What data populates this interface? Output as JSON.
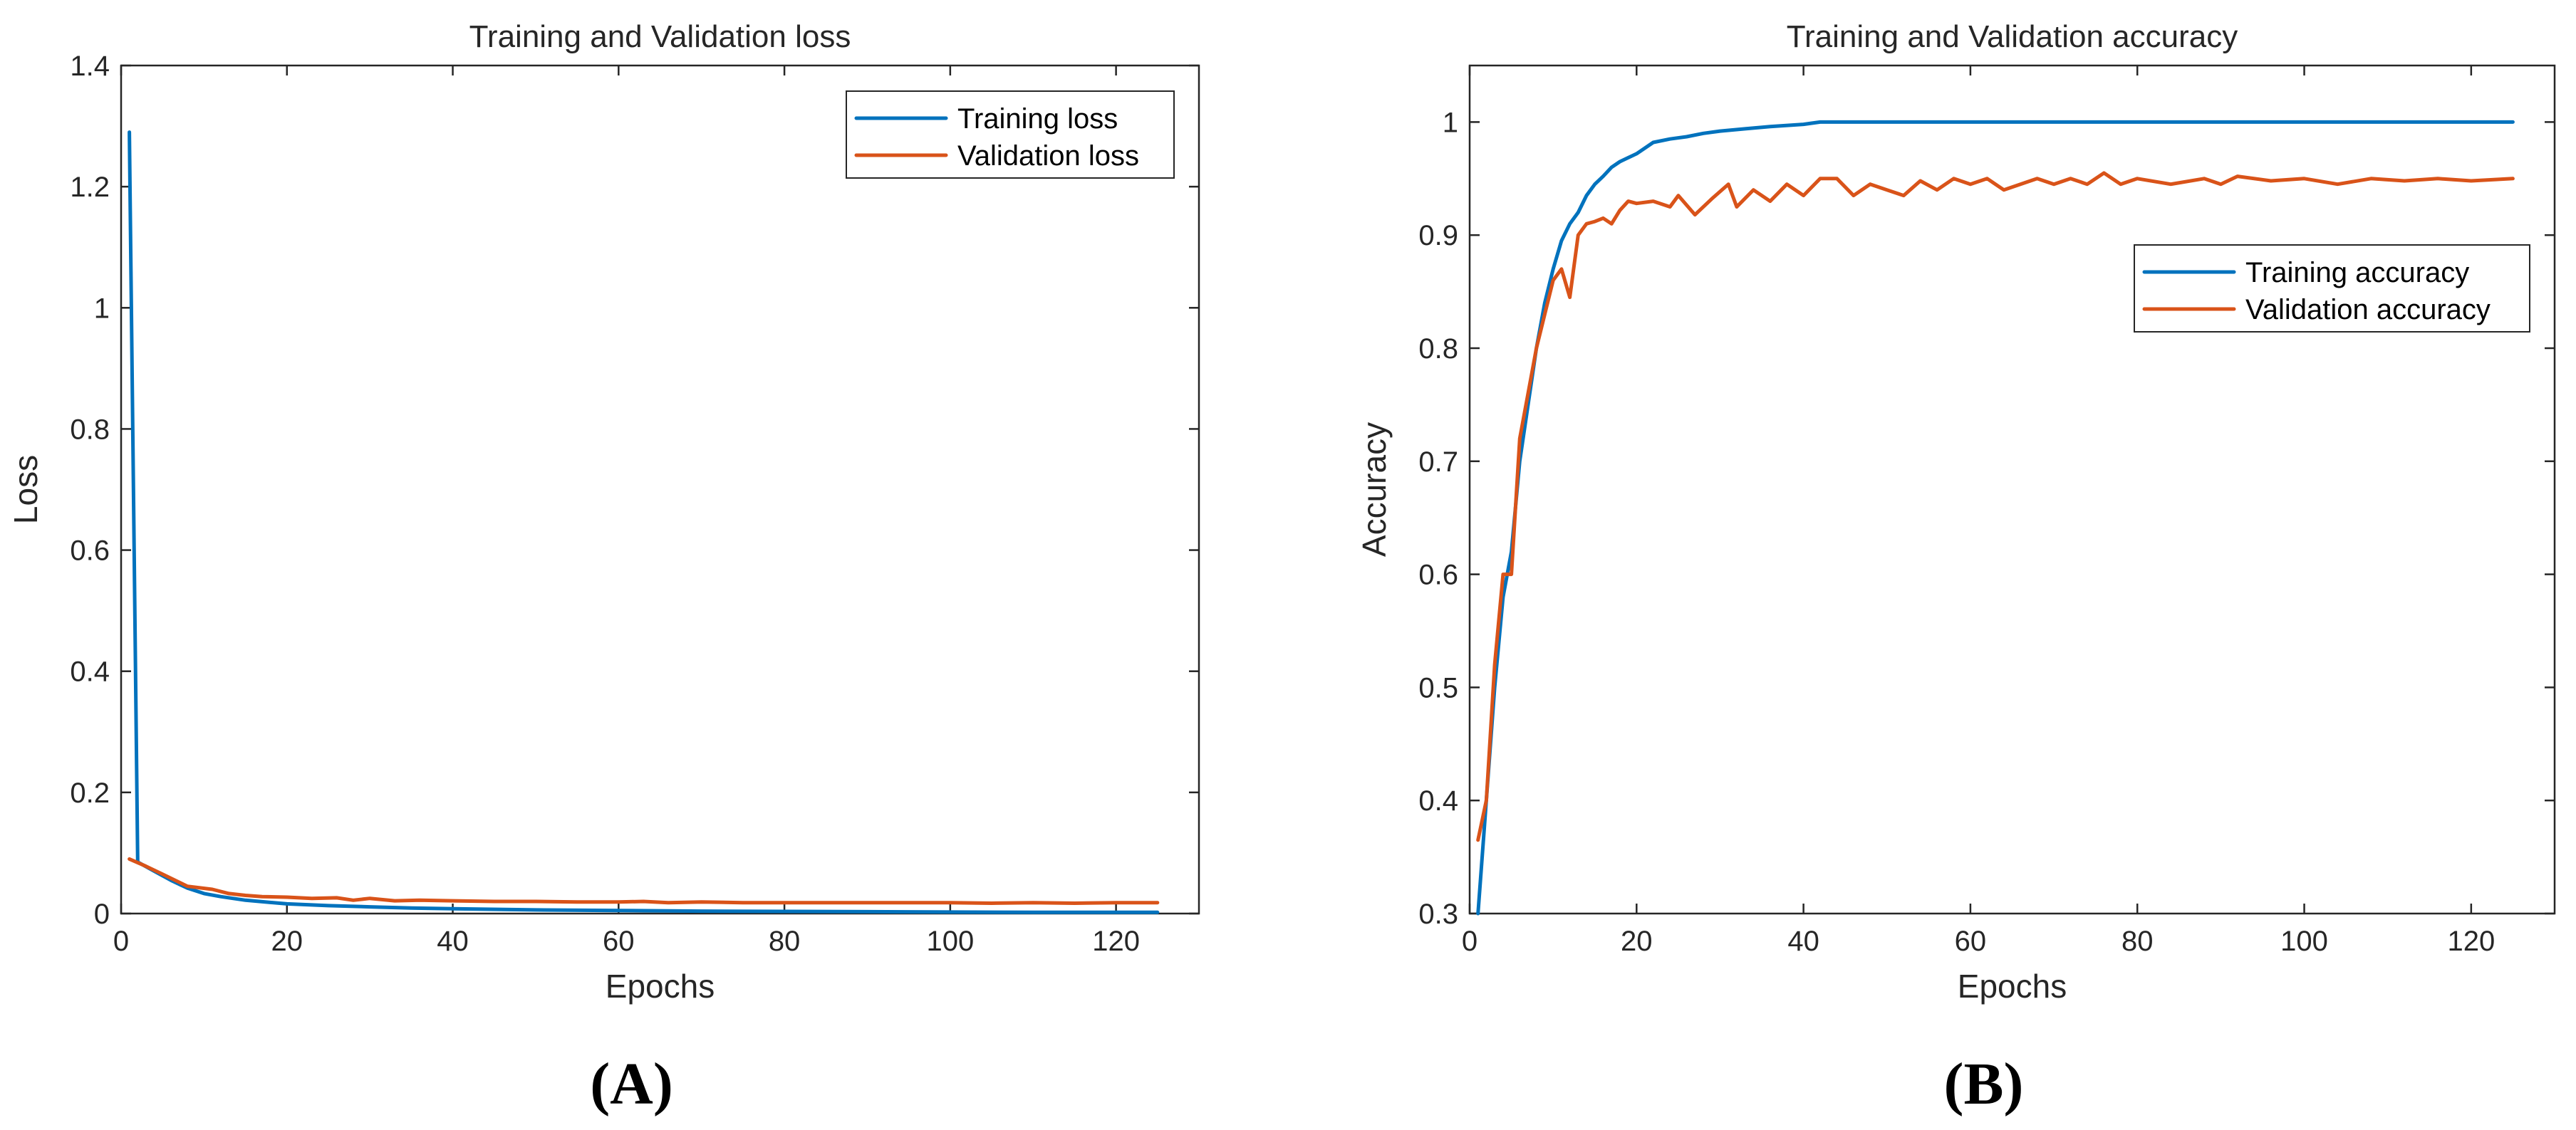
{
  "colors": {
    "training": "#0072BD",
    "validation": "#D95319",
    "axis": "#262626"
  },
  "chart_data": [
    {
      "type": "line",
      "panel_label": "(A)",
      "title": "Training and Validation loss",
      "xlabel": "Epochs",
      "ylabel": "Loss",
      "xlim": [
        0,
        130
      ],
      "ylim": [
        0,
        1.4
      ],
      "xticks": [
        0,
        20,
        40,
        60,
        80,
        100,
        120
      ],
      "yticks": [
        0,
        0.2,
        0.4,
        0.6,
        0.8,
        1,
        1.2,
        1.4
      ],
      "ytick_labels": [
        "0",
        "0.2",
        "0.4",
        "0.6",
        "0.8",
        "1",
        "1.2",
        "1.4"
      ],
      "legend_position": "top-right",
      "series": [
        {
          "name": "Training loss",
          "color_key": "training",
          "points": [
            [
              1,
              1.29
            ],
            [
              2,
              0.085
            ],
            [
              4,
              0.07
            ],
            [
              6,
              0.055
            ],
            [
              8,
              0.042
            ],
            [
              10,
              0.033
            ],
            [
              12,
              0.028
            ],
            [
              15,
              0.022
            ],
            [
              20,
              0.016
            ],
            [
              25,
              0.013
            ],
            [
              30,
              0.011
            ],
            [
              35,
              0.009
            ],
            [
              40,
              0.008
            ],
            [
              50,
              0.006
            ],
            [
              60,
              0.005
            ],
            [
              70,
              0.004
            ],
            [
              80,
              0.0035
            ],
            [
              90,
              0.003
            ],
            [
              100,
              0.0025
            ],
            [
              110,
              0.002
            ],
            [
              125,
              0.002
            ]
          ]
        },
        {
          "name": "Validation loss",
          "color_key": "validation",
          "points": [
            [
              1,
              0.09
            ],
            [
              3,
              0.078
            ],
            [
              5,
              0.065
            ],
            [
              8,
              0.045
            ],
            [
              11,
              0.04
            ],
            [
              13,
              0.033
            ],
            [
              15,
              0.03
            ],
            [
              17,
              0.028
            ],
            [
              20,
              0.027
            ],
            [
              23,
              0.025
            ],
            [
              26,
              0.026
            ],
            [
              28,
              0.022
            ],
            [
              30,
              0.025
            ],
            [
              33,
              0.021
            ],
            [
              36,
              0.022
            ],
            [
              40,
              0.021
            ],
            [
              45,
              0.02
            ],
            [
              50,
              0.02
            ],
            [
              55,
              0.019
            ],
            [
              60,
              0.019
            ],
            [
              63,
              0.02
            ],
            [
              66,
              0.018
            ],
            [
              70,
              0.019
            ],
            [
              75,
              0.018
            ],
            [
              80,
              0.018
            ],
            [
              85,
              0.018
            ],
            [
              90,
              0.018
            ],
            [
              95,
              0.018
            ],
            [
              100,
              0.018
            ],
            [
              105,
              0.017
            ],
            [
              110,
              0.018
            ],
            [
              115,
              0.017
            ],
            [
              120,
              0.018
            ],
            [
              125,
              0.018
            ]
          ]
        }
      ]
    },
    {
      "type": "line",
      "panel_label": "(B)",
      "title": "Training and Validation accuracy",
      "xlabel": "Epochs",
      "ylabel": "Accuracy",
      "xlim": [
        0,
        130
      ],
      "ylim": [
        0.3,
        1.05
      ],
      "xticks": [
        0,
        20,
        40,
        60,
        80,
        100,
        120
      ],
      "yticks": [
        0.3,
        0.4,
        0.5,
        0.6,
        0.7,
        0.8,
        0.9,
        1
      ],
      "ytick_labels": [
        "0.3",
        "0.4",
        "0.5",
        "0.6",
        "0.7",
        "0.8",
        "0.9",
        "1"
      ],
      "legend_position": "right",
      "series": [
        {
          "name": "Training accuracy",
          "color_key": "training",
          "points": [
            [
              1,
              0.3
            ],
            [
              2,
              0.4
            ],
            [
              3,
              0.5
            ],
            [
              4,
              0.58
            ],
            [
              5,
              0.62
            ],
            [
              6,
              0.7
            ],
            [
              7,
              0.75
            ],
            [
              8,
              0.8
            ],
            [
              9,
              0.84
            ],
            [
              10,
              0.87
            ],
            [
              11,
              0.895
            ],
            [
              12,
              0.91
            ],
            [
              13,
              0.92
            ],
            [
              14,
              0.935
            ],
            [
              15,
              0.945
            ],
            [
              16,
              0.952
            ],
            [
              17,
              0.96
            ],
            [
              18,
              0.965
            ],
            [
              20,
              0.972
            ],
            [
              22,
              0.982
            ],
            [
              24,
              0.985
            ],
            [
              26,
              0.987
            ],
            [
              28,
              0.99
            ],
            [
              30,
              0.992
            ],
            [
              33,
              0.994
            ],
            [
              36,
              0.996
            ],
            [
              40,
              0.998
            ],
            [
              42,
              1.0
            ],
            [
              50,
              1.0
            ],
            [
              60,
              1.0
            ],
            [
              80,
              1.0
            ],
            [
              100,
              1.0
            ],
            [
              125,
              1.0
            ]
          ]
        },
        {
          "name": "Validation accuracy",
          "color_key": "validation",
          "points": [
            [
              1,
              0.365
            ],
            [
              2,
              0.4
            ],
            [
              3,
              0.52
            ],
            [
              4,
              0.6
            ],
            [
              5,
              0.6
            ],
            [
              6,
              0.72
            ],
            [
              7,
              0.76
            ],
            [
              8,
              0.8
            ],
            [
              9,
              0.83
            ],
            [
              10,
              0.86
            ],
            [
              11,
              0.87
            ],
            [
              12,
              0.845
            ],
            [
              13,
              0.9
            ],
            [
              14,
              0.91
            ],
            [
              15,
              0.912
            ],
            [
              16,
              0.915
            ],
            [
              17,
              0.91
            ],
            [
              18,
              0.922
            ],
            [
              19,
              0.93
            ],
            [
              20,
              0.928
            ],
            [
              22,
              0.93
            ],
            [
              24,
              0.925
            ],
            [
              25,
              0.935
            ],
            [
              27,
              0.918
            ],
            [
              29,
              0.932
            ],
            [
              31,
              0.945
            ],
            [
              32,
              0.925
            ],
            [
              34,
              0.94
            ],
            [
              36,
              0.93
            ],
            [
              38,
              0.945
            ],
            [
              40,
              0.935
            ],
            [
              42,
              0.95
            ],
            [
              44,
              0.95
            ],
            [
              46,
              0.935
            ],
            [
              48,
              0.945
            ],
            [
              50,
              0.94
            ],
            [
              52,
              0.935
            ],
            [
              54,
              0.948
            ],
            [
              56,
              0.94
            ],
            [
              58,
              0.95
            ],
            [
              60,
              0.945
            ],
            [
              62,
              0.95
            ],
            [
              64,
              0.94
            ],
            [
              66,
              0.945
            ],
            [
              68,
              0.95
            ],
            [
              70,
              0.945
            ],
            [
              72,
              0.95
            ],
            [
              74,
              0.945
            ],
            [
              76,
              0.955
            ],
            [
              78,
              0.945
            ],
            [
              80,
              0.95
            ],
            [
              84,
              0.945
            ],
            [
              88,
              0.95
            ],
            [
              90,
              0.945
            ],
            [
              92,
              0.952
            ],
            [
              96,
              0.948
            ],
            [
              100,
              0.95
            ],
            [
              104,
              0.945
            ],
            [
              108,
              0.95
            ],
            [
              112,
              0.948
            ],
            [
              116,
              0.95
            ],
            [
              120,
              0.948
            ],
            [
              125,
              0.95
            ]
          ]
        }
      ]
    }
  ]
}
